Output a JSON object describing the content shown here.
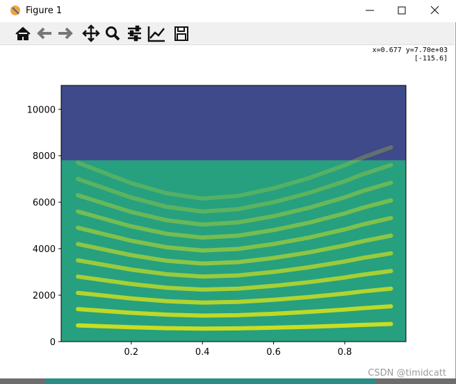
{
  "window": {
    "title": "Figure 1",
    "status": [
      "x=0.677 y=7.70e+03",
      "[-115.6]"
    ]
  },
  "watermark": "CSDN @timidcatt",
  "chart_data": {
    "type": "spectrogram",
    "x": [
      0.05,
      0.2,
      0.3,
      0.4,
      0.5,
      0.6,
      0.7,
      0.8,
      0.85,
      0.93
    ],
    "values": [
      700,
      620,
      580,
      560,
      570,
      600,
      640,
      690,
      720,
      760
    ],
    "harmonics": 11,
    "cutoff": 7800,
    "colors": {
      "low": "#3e4a89",
      "high": "#26a07f",
      "band": "#d8e219"
    },
    "xlim": [
      0.003,
      0.972
    ],
    "ylim": [
      0,
      11025
    ],
    "xticks": [
      0.2,
      0.4,
      0.6,
      0.8
    ],
    "yticks": [
      0,
      2000,
      4000,
      6000,
      8000,
      10000
    ]
  }
}
